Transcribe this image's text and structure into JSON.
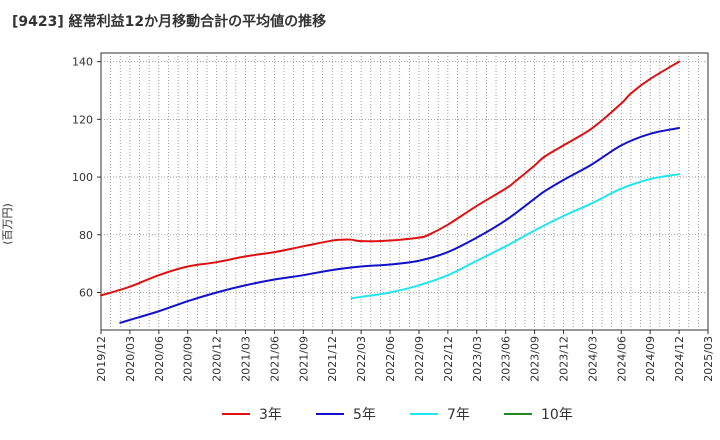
{
  "chart_data": {
    "type": "line",
    "title": "[9423]  経常利益12か月移動合計の平均値の推移",
    "ylabel": "(百万円)",
    "xlabel": "",
    "ylim": [
      47,
      143
    ],
    "yticks": [
      60,
      80,
      100,
      120,
      140
    ],
    "x_ticks": [
      "2019/12",
      "2020/03",
      "2020/06",
      "2020/09",
      "2020/12",
      "2021/03",
      "2021/06",
      "2021/09",
      "2021/12",
      "2022/03",
      "2022/06",
      "2022/09",
      "2022/12",
      "2023/03",
      "2023/06",
      "2023/09",
      "2023/12",
      "2024/03",
      "2024/06",
      "2024/09",
      "2024/12",
      "2025/03"
    ],
    "grid": true,
    "legend_position": "bottom",
    "series": [
      {
        "name": "3年",
        "color": "#dd1111",
        "x": [
          "2019/12",
          "2020/03",
          "2020/06",
          "2020/09",
          "2020/12",
          "2021/03",
          "2021/06",
          "2021/09",
          "2021/12",
          "2022/01",
          "2022/02",
          "2022/03",
          "2022/06",
          "2022/09",
          "2022/10",
          "2022/12",
          "2023/03",
          "2023/06",
          "2023/07",
          "2023/09",
          "2023/10",
          "2023/12",
          "2024/03",
          "2024/06",
          "2024/07",
          "2024/09",
          "2024/12"
        ],
        "values": [
          59,
          62,
          66,
          69,
          70.5,
          72.5,
          74,
          76,
          78,
          78.3,
          78.3,
          77.8,
          78,
          79,
          80,
          83.5,
          90,
          96,
          98.5,
          104,
          107,
          111,
          117,
          125.5,
          129,
          134,
          140
        ]
      },
      {
        "name": "5年",
        "color": "#1111cc",
        "x": [
          "2020/02",
          "2020/03",
          "2020/06",
          "2020/09",
          "2020/12",
          "2021/03",
          "2021/06",
          "2021/09",
          "2021/12",
          "2022/03",
          "2022/06",
          "2022/09",
          "2022/12",
          "2023/03",
          "2023/06",
          "2023/09",
          "2023/10",
          "2023/12",
          "2024/03",
          "2024/06",
          "2024/09",
          "2024/12"
        ],
        "values": [
          49.5,
          50.5,
          53.5,
          57,
          60,
          62.5,
          64.5,
          66,
          67.8,
          69,
          69.7,
          71,
          74,
          79,
          85,
          92.5,
          95,
          99,
          104.5,
          111,
          115,
          117
        ]
      },
      {
        "name": "7年",
        "color": "#22e6ee",
        "x": [
          "2022/02",
          "2022/03",
          "2022/06",
          "2022/09",
          "2022/12",
          "2023/03",
          "2023/06",
          "2023/09",
          "2023/12",
          "2024/03",
          "2024/06",
          "2024/09",
          "2024/12"
        ],
        "values": [
          58,
          58.5,
          60,
          62.5,
          66,
          71,
          76,
          81.5,
          86.5,
          91,
          96,
          99.3,
          101
        ]
      },
      {
        "name": "10年",
        "color": "#228822",
        "x": [],
        "values": []
      }
    ]
  }
}
